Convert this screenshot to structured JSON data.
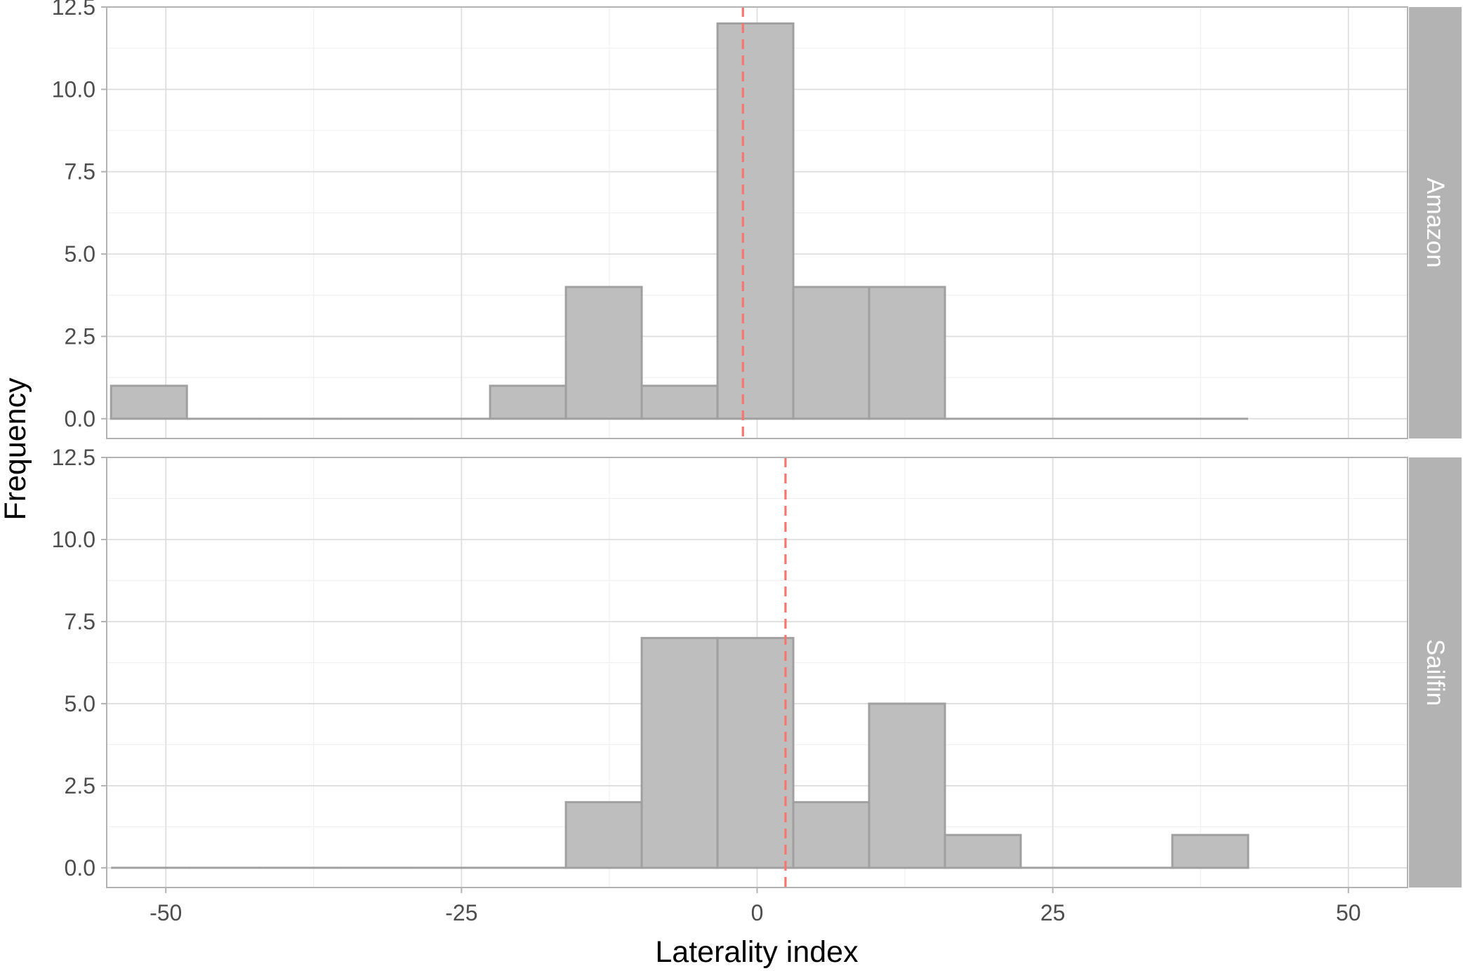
{
  "chart_data": {
    "type": "bar",
    "subtype": "faceted-histogram",
    "xlabel": "Laterality index",
    "ylabel": "Frequency",
    "xlim": [
      -55,
      55
    ],
    "ylim": [
      -0.6,
      12.5
    ],
    "x_ticks": [
      "-50",
      "-25",
      "0",
      "25",
      "50"
    ],
    "x_tick_values": [
      -50,
      -25,
      0,
      25,
      50
    ],
    "y_ticks": [
      "0.0",
      "2.5",
      "5.0",
      "7.5",
      "10.0",
      "12.5"
    ],
    "y_tick_values": [
      0,
      2.5,
      5,
      7.5,
      10,
      12.5
    ],
    "bin_edges": [
      -54.63,
      -48.22,
      -41.81,
      -35.4,
      -28.99,
      -22.58,
      -16.17,
      -9.76,
      -3.35,
      3.06,
      9.47,
      15.88,
      22.29,
      28.7,
      35.11,
      41.52
    ],
    "grid": true,
    "bar_fill": "#bebebe",
    "bar_outline": "#a0a0a0",
    "strip_color": "#b3b3b3",
    "mean_line_color": "#f8766d",
    "facets": [
      {
        "name": "Amazon",
        "counts": [
          1,
          0,
          0,
          0,
          0,
          1,
          4,
          1,
          12,
          4,
          4,
          0,
          0,
          0,
          0
        ],
        "mean_line_x": -1.2
      },
      {
        "name": "Sailfin",
        "counts": [
          0,
          0,
          0,
          0,
          0,
          0,
          2,
          7,
          7,
          2,
          5,
          1,
          0,
          0,
          1
        ],
        "mean_line_x": 2.4
      }
    ]
  }
}
